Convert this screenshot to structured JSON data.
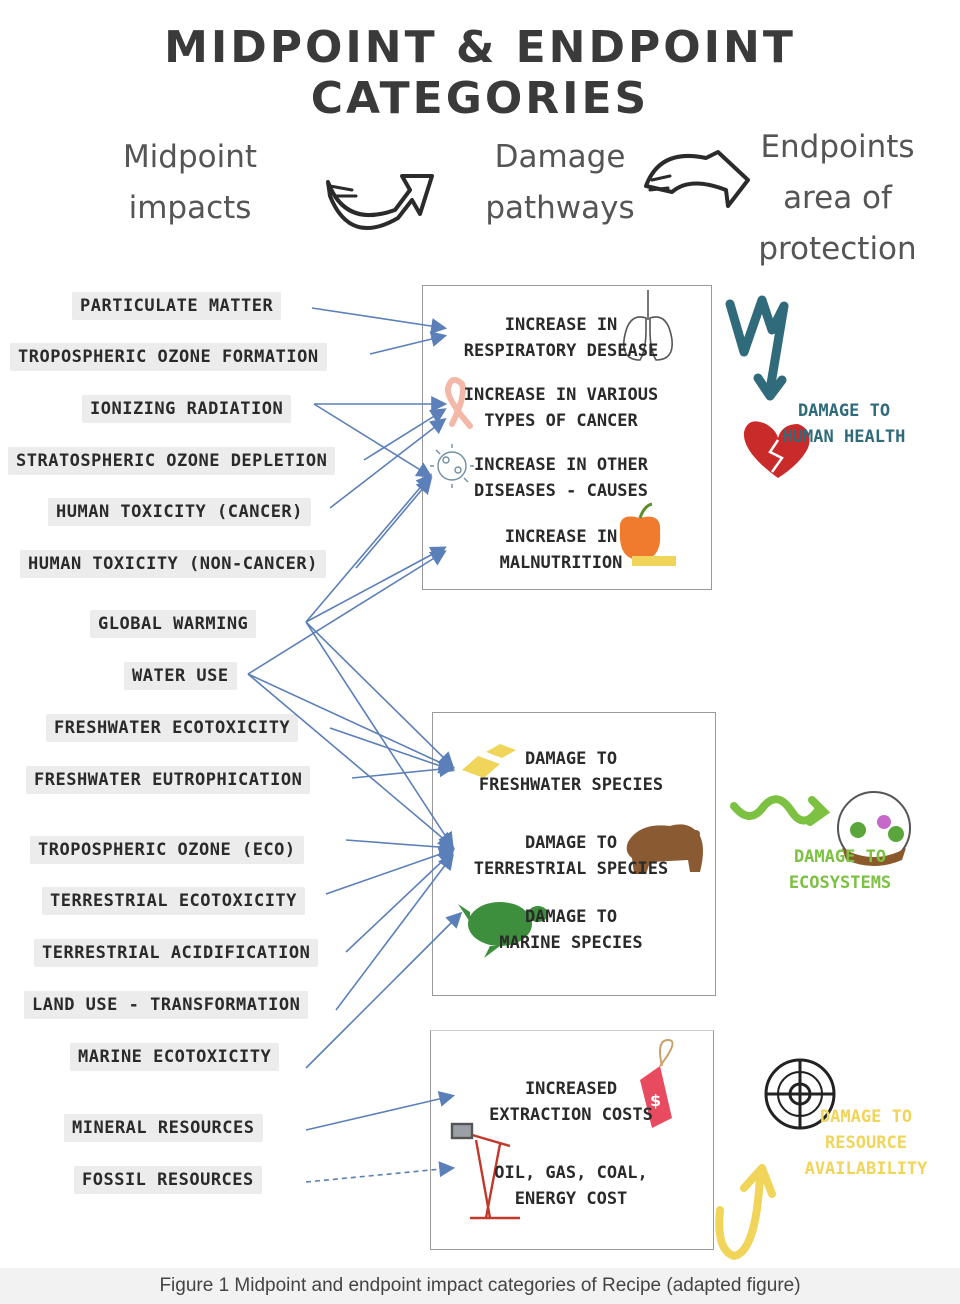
{
  "title": "MIDPOINT & ENDPOINT CATEGORIES",
  "headers": {
    "midpoint": [
      "Midpoint",
      "impacts"
    ],
    "damage": [
      "Damage",
      "pathways"
    ],
    "endpoint": [
      "Endpoints",
      "area of",
      "protection"
    ]
  },
  "midpoints": [
    "PARTICULATE MATTER",
    "TROPOSPHERIC OZONE FORMATION",
    "IONIZING RADIATION",
    "STRATOSPHERIC OZONE DEPLETION",
    "HUMAN TOXICITY (CANCER)",
    "HUMAN TOXICITY (NON-CANCER)",
    "GLOBAL WARMING",
    "WATER USE",
    "FRESHWATER ECOTOXICITY",
    "FRESHWATER EUTROPHICATION",
    "TROPOSPHERIC OZONE (ECO)",
    "TERRESTRIAL ECOTOXICITY",
    "TERRESTRIAL ACIDIFICATION",
    "LAND USE - TRANSFORMATION",
    "MARINE ECOTOXICITY",
    "MINERAL RESOURCES",
    "FOSSIL RESOURCES"
  ],
  "damage_pathways": {
    "human_health": [
      [
        "INCREASE IN",
        "RESPIRATORY DESEASE"
      ],
      [
        "INCREASE IN VARIOUS",
        "TYPES OF CANCER"
      ],
      [
        "INCREASE IN OTHER",
        "DISEASES - CAUSES"
      ],
      [
        "INCREASE IN",
        "MALNUTRITION"
      ]
    ],
    "ecosystems": [
      [
        "DAMAGE TO",
        "FRESHWATER SPECIES"
      ],
      [
        "DAMAGE TO",
        "TERRESTRIAL SPECIES"
      ],
      [
        "DAMAGE TO",
        "MARINE SPECIES"
      ]
    ],
    "resources": [
      [
        "INCREASED",
        "EXTRACTION COSTS"
      ],
      [
        "OIL, GAS, COAL,",
        "ENERGY COST"
      ]
    ]
  },
  "endpoints": {
    "human_health": [
      "DAMAGE TO",
      "HUMAN HEALTH"
    ],
    "ecosystems": [
      "DAMAGE TO",
      "ECOSYSTEMS"
    ],
    "resources": [
      "DAMAGE TO",
      "RESOURCE",
      "AVAILABILITY"
    ]
  },
  "colors": {
    "arrow": "#5b7fb8",
    "human_health": "#2f6b7a",
    "ecosystems": "#7cc142",
    "resources": "#f0d55a",
    "heart": "#c92a2a"
  },
  "caption": "Figure 1 Midpoint and endpoint impact categories of Recipe (adapted figure)"
}
